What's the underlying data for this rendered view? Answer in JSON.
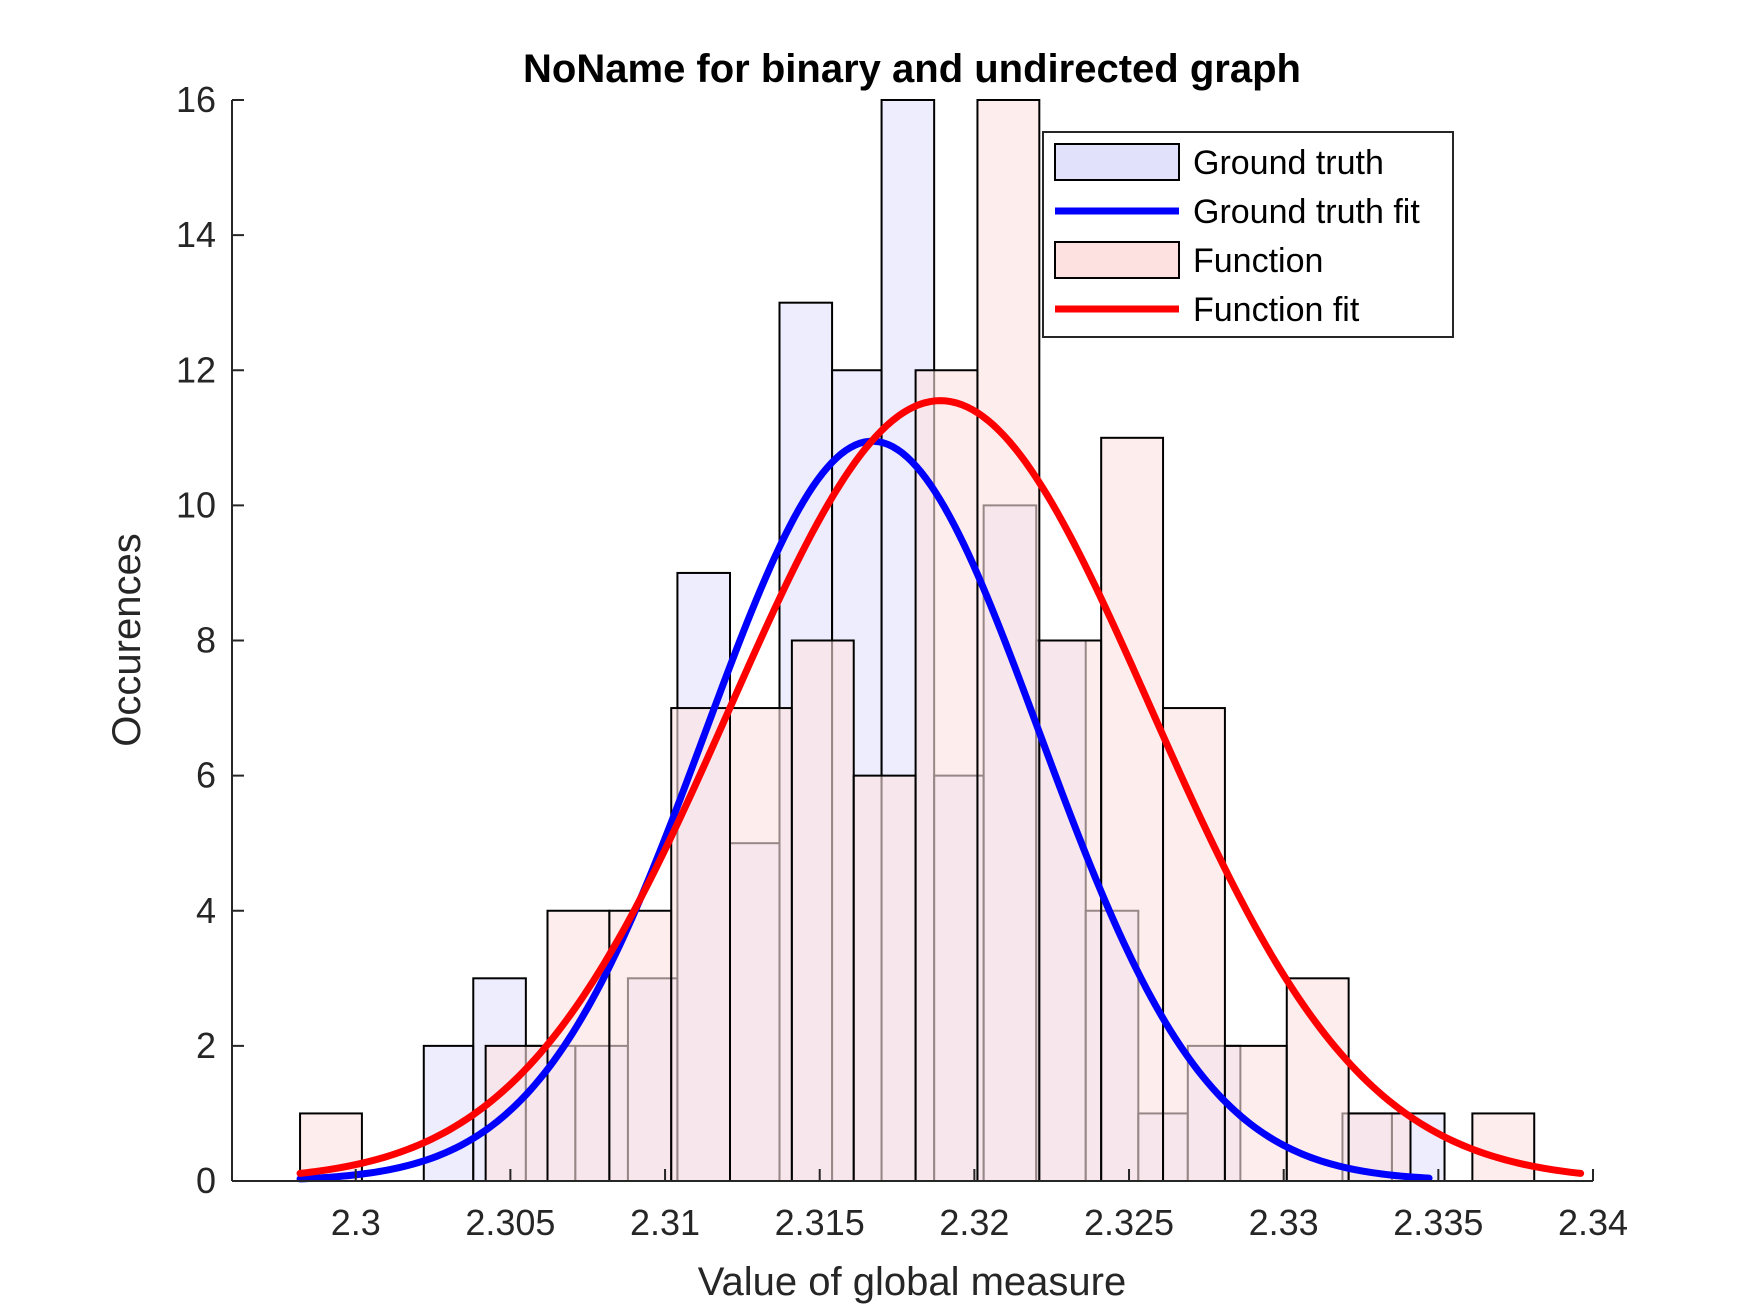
{
  "chart_data": {
    "type": "bar",
    "subtype": "overlaid-histogram-with-gaussian-fits",
    "title": "NoName for binary and undirected graph",
    "xlabel": "Value of global measure",
    "ylabel": "Occurences",
    "xlim": [
      2.296,
      2.34
    ],
    "ylim": [
      0,
      16
    ],
    "xticks": [
      2.3,
      2.305,
      2.31,
      2.315,
      2.32,
      2.325,
      2.33,
      2.335,
      2.34
    ],
    "xtick_labels": [
      "2.3",
      "2.305",
      "2.31",
      "2.315",
      "2.32",
      "2.325",
      "2.33",
      "2.335",
      "2.34"
    ],
    "yticks": [
      0,
      2,
      4,
      6,
      8,
      10,
      12,
      14,
      16
    ],
    "ytick_labels": [
      "0",
      "2",
      "4",
      "6",
      "8",
      "10",
      "12",
      "14",
      "16"
    ],
    "grid": false,
    "legend": {
      "placement": "top-right",
      "entries": [
        {
          "label": "Ground truth",
          "kind": "bar",
          "color": "#e1e1fb"
        },
        {
          "label": "Ground truth fit",
          "kind": "line",
          "color": "#0000ff"
        },
        {
          "label": "Function",
          "kind": "bar",
          "color": "#fde1e1"
        },
        {
          "label": "Function fit",
          "kind": "line",
          "color": "#ff0000"
        }
      ]
    },
    "histograms": [
      {
        "name": "Ground truth",
        "color": "#e1e1fb",
        "bins": [
          {
            "x0": 2.3022,
            "x1": 2.3038,
            "count": 2
          },
          {
            "x0": 2.3038,
            "x1": 2.3055,
            "count": 3
          },
          {
            "x0": 2.3055,
            "x1": 2.3071,
            "count": 2
          },
          {
            "x0": 2.3071,
            "x1": 2.3088,
            "count": 2
          },
          {
            "x0": 2.3088,
            "x1": 2.3104,
            "count": 3
          },
          {
            "x0": 2.3104,
            "x1": 2.3121,
            "count": 9
          },
          {
            "x0": 2.3121,
            "x1": 2.3137,
            "count": 5
          },
          {
            "x0": 2.3137,
            "x1": 2.3154,
            "count": 13
          },
          {
            "x0": 2.3154,
            "x1": 2.317,
            "count": 12
          },
          {
            "x0": 2.317,
            "x1": 2.3187,
            "count": 16
          },
          {
            "x0": 2.3187,
            "x1": 2.3203,
            "count": 6
          },
          {
            "x0": 2.3203,
            "x1": 2.322,
            "count": 10
          },
          {
            "x0": 2.322,
            "x1": 2.3236,
            "count": 8
          },
          {
            "x0": 2.3236,
            "x1": 2.3253,
            "count": 4
          },
          {
            "x0": 2.3253,
            "x1": 2.3269,
            "count": 1
          },
          {
            "x0": 2.3269,
            "x1": 2.3286,
            "count": 2
          },
          {
            "x0": 2.3286,
            "x1": 2.3302,
            "count": 0
          },
          {
            "x0": 2.3302,
            "x1": 2.3319,
            "count": 0
          },
          {
            "x0": 2.3319,
            "x1": 2.3335,
            "count": 1
          },
          {
            "x0": 2.3335,
            "x1": 2.3352,
            "count": 1
          }
        ]
      },
      {
        "name": "Function",
        "color": "#fde1e1",
        "bins": [
          {
            "x0": 2.2982,
            "x1": 2.3002,
            "count": 1
          },
          {
            "x0": 2.3002,
            "x1": 2.3022,
            "count": 0
          },
          {
            "x0": 2.3022,
            "x1": 2.3042,
            "count": 0
          },
          {
            "x0": 2.3042,
            "x1": 2.3062,
            "count": 2
          },
          {
            "x0": 2.3062,
            "x1": 2.3082,
            "count": 4
          },
          {
            "x0": 2.3082,
            "x1": 2.3102,
            "count": 4
          },
          {
            "x0": 2.3102,
            "x1": 2.3121,
            "count": 7
          },
          {
            "x0": 2.3121,
            "x1": 2.3141,
            "count": 7
          },
          {
            "x0": 2.3141,
            "x1": 2.3161,
            "count": 8
          },
          {
            "x0": 2.3161,
            "x1": 2.3181,
            "count": 6
          },
          {
            "x0": 2.3181,
            "x1": 2.3201,
            "count": 12
          },
          {
            "x0": 2.3201,
            "x1": 2.3221,
            "count": 16
          },
          {
            "x0": 2.3221,
            "x1": 2.3241,
            "count": 8
          },
          {
            "x0": 2.3241,
            "x1": 2.3261,
            "count": 11
          },
          {
            "x0": 2.3261,
            "x1": 2.3281,
            "count": 7
          },
          {
            "x0": 2.3281,
            "x1": 2.3301,
            "count": 2
          },
          {
            "x0": 2.3301,
            "x1": 2.3321,
            "count": 3
          },
          {
            "x0": 2.3321,
            "x1": 2.3341,
            "count": 1
          },
          {
            "x0": 2.3341,
            "x1": 2.3361,
            "count": 0
          },
          {
            "x0": 2.3361,
            "x1": 2.3381,
            "count": 1
          }
        ]
      }
    ],
    "fits": [
      {
        "name": "Ground truth fit",
        "color": "#0000ff",
        "mean": 2.3167,
        "sigma": 0.0054,
        "peak": 10.95,
        "xmin": 2.2982,
        "xmax": 2.3347
      },
      {
        "name": "Function fit",
        "color": "#ff0000",
        "mean": 2.3189,
        "sigma": 0.0068,
        "peak": 11.55,
        "xmin": 2.2982,
        "xmax": 2.3396
      }
    ]
  }
}
